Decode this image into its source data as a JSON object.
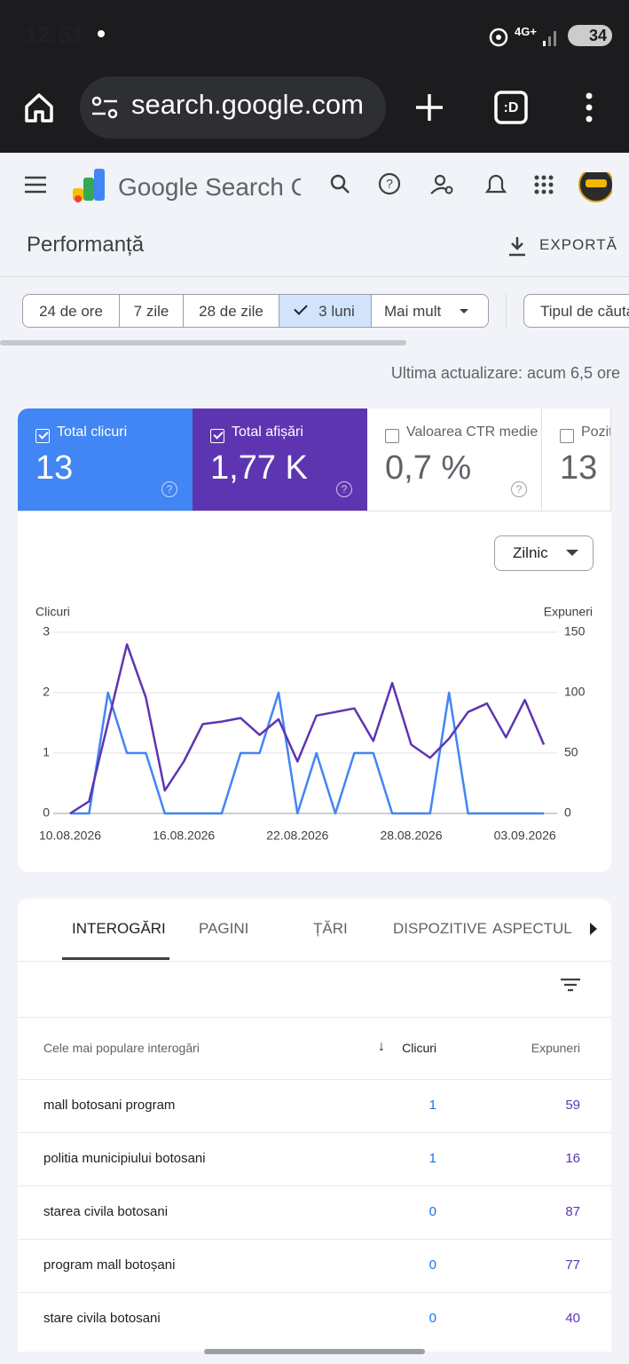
{
  "status": {
    "time": "12:51",
    "network": "4G+",
    "battery": "34"
  },
  "browser": {
    "url": "search.google.com"
  },
  "app": {
    "brand": "Google Search Console"
  },
  "header": {
    "title": "Performanță",
    "export": "EXPORTĂ"
  },
  "filters": {
    "ranges": [
      "24 de ore",
      "7 zile",
      "28 de zile",
      "3 luni",
      "Mai mult"
    ],
    "selected": 3,
    "search_type": "Tipul de căutare"
  },
  "updated": "Ultima actualizare: acum 6,5 ore",
  "metrics": [
    {
      "label": "Total clicuri",
      "value": "13"
    },
    {
      "label": "Total afișări",
      "value": "1,77 K"
    },
    {
      "label": "Valoarea CTR medie",
      "value": "0,7 %"
    },
    {
      "label": "Poziția medie",
      "value": "13"
    }
  ],
  "granularity": "Zilnic",
  "chart_data": {
    "type": "line",
    "y_label": "Clicuri",
    "y2_label": "Expuneri",
    "categories": [
      "10.08.2026",
      null,
      null,
      null,
      null,
      null,
      "16.08.2026",
      null,
      null,
      null,
      null,
      null,
      "22.08.2026",
      null,
      null,
      null,
      null,
      null,
      "28.08.2026",
      null,
      null,
      null,
      null,
      null,
      "03.09.2026",
      null
    ],
    "series": [
      {
        "name": "Clicuri",
        "color": "#4285f4",
        "values": [
          0,
          0,
          2,
          1,
          1,
          0,
          0,
          0,
          0,
          1,
          1,
          2,
          0,
          1,
          0,
          1,
          1,
          0,
          0,
          0,
          2,
          0,
          0,
          0,
          0,
          0
        ]
      },
      {
        "name": "Expuneri",
        "color": "#5e35b1",
        "axis": "y2",
        "values": [
          0,
          10,
          75,
          140,
          96,
          19,
          43,
          74,
          76,
          79,
          65,
          78,
          43,
          81,
          84,
          87,
          60,
          108,
          57,
          46,
          62,
          84,
          91,
          63,
          94,
          57
        ]
      }
    ],
    "ylim": [
      0,
      3
    ],
    "yticks": [
      0,
      1,
      2,
      3
    ],
    "y2lim": [
      0,
      150
    ],
    "y2ticks": [
      0,
      50,
      100,
      150
    ],
    "grid": true
  },
  "tabs": [
    "INTEROGĂRI",
    "PAGINI",
    "ȚĂRI",
    "DISPOZITIVE",
    "ASPECTUL"
  ],
  "table": {
    "headers": [
      "Cele mai populare interogări",
      "Clicuri",
      "Expuneri"
    ],
    "rows": [
      [
        "mall botosani program",
        "1",
        "59"
      ],
      [
        "politia municipiului botosani",
        "1",
        "16"
      ],
      [
        "starea civila botosani",
        "0",
        "87"
      ],
      [
        "program mall botoșani",
        "0",
        "77"
      ],
      [
        "stare civila botosani",
        "0",
        "40"
      ]
    ]
  }
}
